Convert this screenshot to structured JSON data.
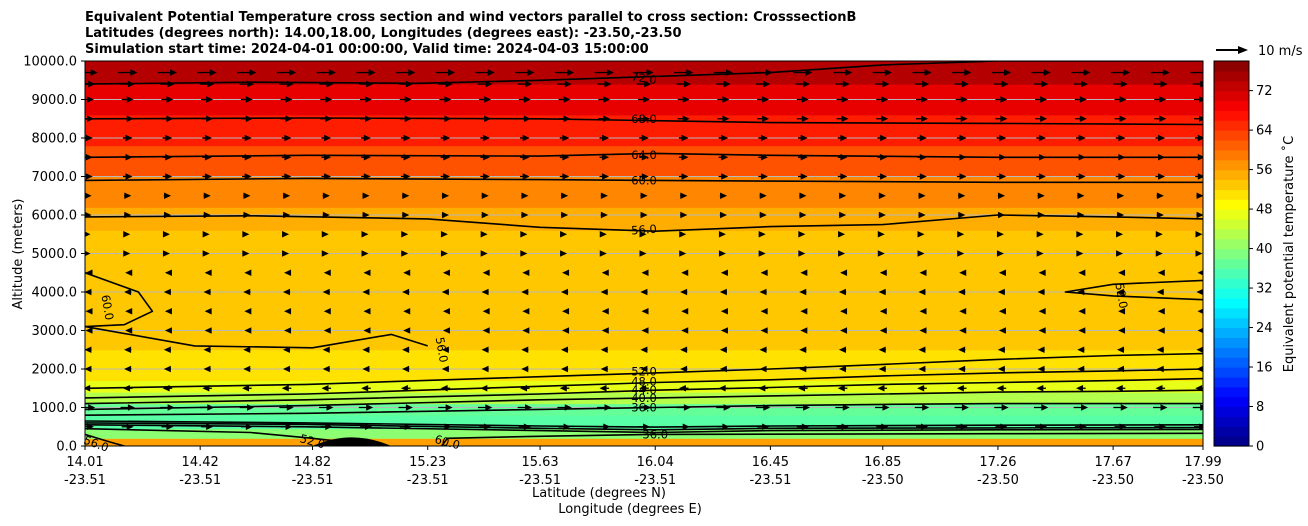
{
  "chart_data": {
    "type": "contour",
    "title_lines": [
      "Equivalent Potential Temperature cross section and wind vectors parallel to cross section: CrosssectionB",
      "Latitudes (degrees north): 14.00,18.00, Longitudes (degrees east): -23.50,-23.50",
      "Simulation start time: 2024-04-01 00:00:00, Valid time: 2024-04-03 15:00:00"
    ],
    "ylabel": "Altitude (meters)",
    "xlabel_line1": "Latitude (degrees N)",
    "xlabel_line2": "Longitude (degrees E)",
    "ylim": [
      0,
      10000
    ],
    "yticks": [
      {
        "value": 0,
        "label": "0.0"
      },
      {
        "value": 1000,
        "label": "1000.0"
      },
      {
        "value": 2000,
        "label": "2000.0"
      },
      {
        "value": 3000,
        "label": "3000.0"
      },
      {
        "value": 4000,
        "label": "4000.0"
      },
      {
        "value": 5000,
        "label": "5000.0"
      },
      {
        "value": 6000,
        "label": "6000.0"
      },
      {
        "value": 7000,
        "label": "7000.0"
      },
      {
        "value": 8000,
        "label": "8000.0"
      },
      {
        "value": 9000,
        "label": "9000.0"
      },
      {
        "value": 10000,
        "label": "10000.0"
      }
    ],
    "xlim": [
      14.01,
      17.99
    ],
    "xticks": [
      {
        "lat": 14.01,
        "lat_label": "14.01",
        "lon_label": "-23.51"
      },
      {
        "lat": 14.42,
        "lat_label": "14.42",
        "lon_label": "-23.51"
      },
      {
        "lat": 14.82,
        "lat_label": "14.82",
        "lon_label": "-23.51"
      },
      {
        "lat": 15.23,
        "lat_label": "15.23",
        "lon_label": "-23.51"
      },
      {
        "lat": 15.63,
        "lat_label": "15.63",
        "lon_label": "-23.51"
      },
      {
        "lat": 16.04,
        "lat_label": "16.04",
        "lon_label": "-23.51"
      },
      {
        "lat": 16.45,
        "lat_label": "16.45",
        "lon_label": "-23.51"
      },
      {
        "lat": 16.85,
        "lat_label": "16.85",
        "lon_label": "-23.50"
      },
      {
        "lat": 17.26,
        "lat_label": "17.26",
        "lon_label": "-23.50"
      },
      {
        "lat": 17.67,
        "lat_label": "17.67",
        "lon_label": "-23.50"
      },
      {
        "lat": 17.99,
        "lat_label": "17.99",
        "lon_label": "-23.50"
      }
    ],
    "colorbar": {
      "label": "Equivalent potential temperature ˚C",
      "min": 0,
      "max": 78,
      "step": 2,
      "ticks": [
        0,
        8,
        16,
        24,
        32,
        40,
        48,
        56,
        64,
        72
      ]
    },
    "filled_layers": [
      {
        "from": 0,
        "to": 200,
        "value": 56
      },
      {
        "from": 200,
        "to": 450,
        "value": 40
      },
      {
        "from": 450,
        "to": 800,
        "value": 36
      },
      {
        "from": 800,
        "to": 1100,
        "value": 37
      },
      {
        "from": 1100,
        "to": 1400,
        "value": 43
      },
      {
        "from": 1400,
        "to": 1700,
        "value": 47
      },
      {
        "from": 1700,
        "to": 2500,
        "value": 51
      },
      {
        "from": 2500,
        "to": 5600,
        "value": 53
      },
      {
        "from": 5600,
        "to": 6200,
        "value": 55
      },
      {
        "from": 6200,
        "to": 7000,
        "value": 58
      },
      {
        "from": 7000,
        "to": 7800,
        "value": 62
      },
      {
        "from": 7800,
        "to": 8600,
        "value": 66
      },
      {
        "from": 8600,
        "to": 9400,
        "value": 70
      },
      {
        "from": 9400,
        "to": 10000,
        "value": 74
      }
    ],
    "contours": [
      {
        "level": 72,
        "label": "72.0",
        "points": [
          [
            14.01,
            9400
          ],
          [
            14.6,
            9450
          ],
          [
            15.2,
            9420
          ],
          [
            15.63,
            9500
          ],
          [
            16.04,
            9600
          ],
          [
            16.45,
            9700
          ],
          [
            16.85,
            9900
          ],
          [
            17.26,
            10000
          ],
          [
            17.99,
            10000
          ]
        ]
      },
      {
        "level": 68,
        "label": "68.0",
        "points": [
          [
            14.01,
            8500
          ],
          [
            14.8,
            8520
          ],
          [
            15.63,
            8500
          ],
          [
            16.04,
            8450
          ],
          [
            16.45,
            8400
          ],
          [
            17.26,
            8380
          ],
          [
            17.99,
            8350
          ]
        ]
      },
      {
        "level": 64,
        "label": "64.0",
        "points": [
          [
            14.01,
            7500
          ],
          [
            14.8,
            7550
          ],
          [
            15.63,
            7530
          ],
          [
            16.04,
            7600
          ],
          [
            16.45,
            7550
          ],
          [
            17.26,
            7500
          ],
          [
            17.99,
            7500
          ]
        ]
      },
      {
        "level": 60,
        "label": "60.0",
        "points": [
          [
            14.01,
            6900
          ],
          [
            14.8,
            6950
          ],
          [
            15.63,
            6920
          ],
          [
            16.04,
            6900
          ],
          [
            16.45,
            6880
          ],
          [
            17.26,
            6850
          ],
          [
            17.99,
            6850
          ]
        ]
      },
      {
        "level": 56,
        "label": "56.0",
        "points": [
          [
            14.01,
            5950
          ],
          [
            14.6,
            5980
          ],
          [
            15.23,
            5900
          ],
          [
            15.63,
            5680
          ],
          [
            16.04,
            5580
          ],
          [
            16.45,
            5700
          ],
          [
            16.85,
            5750
          ],
          [
            17.26,
            6000
          ],
          [
            17.67,
            5950
          ],
          [
            17.99,
            5900
          ]
        ]
      },
      {
        "level": 52,
        "label": "52.0",
        "points": [
          [
            14.01,
            1500
          ],
          [
            14.8,
            1600
          ],
          [
            15.63,
            1800
          ],
          [
            16.04,
            1900
          ],
          [
            16.45,
            2000
          ],
          [
            16.85,
            2120
          ],
          [
            17.26,
            2250
          ],
          [
            17.67,
            2350
          ],
          [
            17.99,
            2400
          ]
        ]
      },
      {
        "level": 48,
        "label": "48.0",
        "points": [
          [
            14.01,
            1250
          ],
          [
            14.8,
            1350
          ],
          [
            15.63,
            1550
          ],
          [
            16.04,
            1650
          ],
          [
            16.45,
            1720
          ],
          [
            16.85,
            1820
          ],
          [
            17.26,
            1900
          ],
          [
            17.67,
            1950
          ],
          [
            17.99,
            2000
          ]
        ]
      },
      {
        "level": 44,
        "label": "44.0",
        "points": [
          [
            14.01,
            1100
          ],
          [
            14.8,
            1200
          ],
          [
            15.63,
            1350
          ],
          [
            16.04,
            1450
          ],
          [
            16.45,
            1520
          ],
          [
            16.85,
            1600
          ],
          [
            17.26,
            1650
          ],
          [
            17.67,
            1700
          ],
          [
            17.99,
            1750
          ]
        ]
      },
      {
        "level": 40,
        "label": "40.0",
        "points": [
          [
            14.01,
            950
          ],
          [
            14.8,
            1050
          ],
          [
            15.63,
            1200
          ],
          [
            16.04,
            1250
          ],
          [
            16.45,
            1300
          ],
          [
            16.85,
            1350
          ],
          [
            17.26,
            1400
          ],
          [
            17.67,
            1420
          ],
          [
            17.99,
            1450
          ]
        ]
      },
      {
        "level": 36,
        "label": "36.0",
        "points": [
          [
            14.01,
            800
          ],
          [
            14.8,
            850
          ],
          [
            15.63,
            950
          ],
          [
            16.04,
            1000
          ],
          [
            16.45,
            1050
          ],
          [
            16.85,
            1080
          ],
          [
            17.26,
            1100
          ],
          [
            17.67,
            1100
          ],
          [
            17.99,
            1100
          ]
        ]
      },
      {
        "level": 36,
        "label": "36.0",
        "points": [
          [
            14.01,
            550
          ],
          [
            14.8,
            500
          ],
          [
            15.63,
            400
          ],
          [
            16.04,
            350
          ],
          [
            16.45,
            400
          ],
          [
            17.26,
            420
          ],
          [
            17.99,
            430
          ]
        ]
      },
      {
        "level": 40,
        "label": "40.0",
        "points": [
          [
            14.01,
            600
          ],
          [
            14.8,
            560
          ],
          [
            15.63,
            460
          ],
          [
            16.04,
            420
          ],
          [
            16.45,
            460
          ],
          [
            17.26,
            470
          ],
          [
            17.99,
            480
          ]
        ]
      },
      {
        "level": 48,
        "label": "48.0",
        "points": [
          [
            14.01,
            650
          ],
          [
            14.8,
            600
          ],
          [
            15.63,
            520
          ],
          [
            16.04,
            490
          ],
          [
            16.45,
            520
          ],
          [
            17.26,
            540
          ],
          [
            17.99,
            550
          ]
        ]
      },
      {
        "level": 52,
        "label": "52.0",
        "points": [
          [
            14.01,
            450
          ],
          [
            14.6,
            350
          ],
          [
            14.82,
            200
          ],
          [
            15.0,
            50
          ]
        ]
      },
      {
        "level": 56,
        "label": "56.0",
        "points": [
          [
            14.01,
            300
          ],
          [
            14.1,
            100
          ],
          [
            14.15,
            0
          ]
        ]
      },
      {
        "level": 60,
        "label": "60.0",
        "points": [
          [
            15.28,
            0
          ],
          [
            15.3,
            200
          ],
          [
            15.6,
            250
          ],
          [
            16.04,
            300
          ],
          [
            17.26,
            320
          ],
          [
            17.99,
            330
          ]
        ]
      },
      {
        "level": 52,
        "label": "52.0",
        "points": [
          [
            17.99,
            4300
          ],
          [
            17.67,
            4200
          ],
          [
            17.5,
            4000
          ],
          [
            17.67,
            3900
          ],
          [
            17.99,
            3800
          ]
        ]
      },
      {
        "level": 60,
        "label": "60.0",
        "points": [
          [
            14.01,
            4500
          ],
          [
            14.2,
            4000
          ],
          [
            14.25,
            3500
          ],
          [
            14.15,
            3150
          ],
          [
            14.01,
            3100
          ]
        ]
      },
      {
        "level": 56,
        "label": "56.0",
        "points": [
          [
            14.01,
            3100
          ],
          [
            14.4,
            2600
          ],
          [
            14.82,
            2550
          ],
          [
            15.1,
            2900
          ],
          [
            15.23,
            2600
          ]
        ]
      }
    ],
    "contour_labels": [
      {
        "text": "72.0",
        "x": 16.0,
        "y": 9550,
        "angle": 8
      },
      {
        "text": "68.0",
        "x": 16.0,
        "y": 8500,
        "angle": 0
      },
      {
        "text": "64.0",
        "x": 16.0,
        "y": 7560,
        "angle": 0
      },
      {
        "text": "60.0",
        "x": 16.0,
        "y": 6890,
        "angle": 0
      },
      {
        "text": "56.0",
        "x": 16.0,
        "y": 5620,
        "angle": -4
      },
      {
        "text": "52.0",
        "x": 16.0,
        "y": 1930,
        "angle": 0
      },
      {
        "text": "48.0",
        "x": 16.0,
        "y": 1670,
        "angle": 0
      },
      {
        "text": "44.0",
        "x": 16.0,
        "y": 1450,
        "angle": 0
      },
      {
        "text": "40.0",
        "x": 16.0,
        "y": 1250,
        "angle": 0
      },
      {
        "text": "36.0",
        "x": 16.0,
        "y": 1000,
        "angle": 0
      },
      {
        "text": "36.0",
        "x": 16.04,
        "y": 300,
        "angle": 0
      },
      {
        "text": "60.0",
        "x": 15.3,
        "y": 100,
        "angle": 15
      },
      {
        "text": "52.0",
        "x": 14.82,
        "y": 120,
        "angle": 15
      },
      {
        "text": "56.0",
        "x": 14.05,
        "y": 60,
        "angle": 20
      },
      {
        "text": "56.0",
        "x": 15.28,
        "y": 2500,
        "angle": 80
      },
      {
        "text": "60.0",
        "x": 14.09,
        "y": 3600,
        "angle": 80
      },
      {
        "text": "52.0",
        "x": 17.7,
        "y": 3900,
        "angle": 80
      }
    ],
    "wind_rows": [
      {
        "z": 9700,
        "u": 8
      },
      {
        "z": 9400,
        "u": 6
      },
      {
        "z": 9000,
        "u": 5
      },
      {
        "z": 8500,
        "u": 5
      },
      {
        "z": 8000,
        "u": 4
      },
      {
        "z": 7500,
        "u": 4
      },
      {
        "z": 7000,
        "u": 4
      },
      {
        "z": 6500,
        "u": 3
      },
      {
        "z": 6000,
        "u": 3
      },
      {
        "z": 5500,
        "u": 2
      },
      {
        "z": 5000,
        "u": 1
      },
      {
        "z": 4500,
        "u": -2
      },
      {
        "z": 4000,
        "u": -3
      },
      {
        "z": 3500,
        "u": -2
      },
      {
        "z": 3000,
        "u": -2
      },
      {
        "z": 2500,
        "u": -3
      },
      {
        "z": 2000,
        "u": -3
      },
      {
        "z": 1500,
        "u": -4
      },
      {
        "z": 1000,
        "u": 6
      },
      {
        "z": 500,
        "u": 5
      }
    ],
    "quiver_key": {
      "label": "10 m/s",
      "value": 10
    }
  }
}
